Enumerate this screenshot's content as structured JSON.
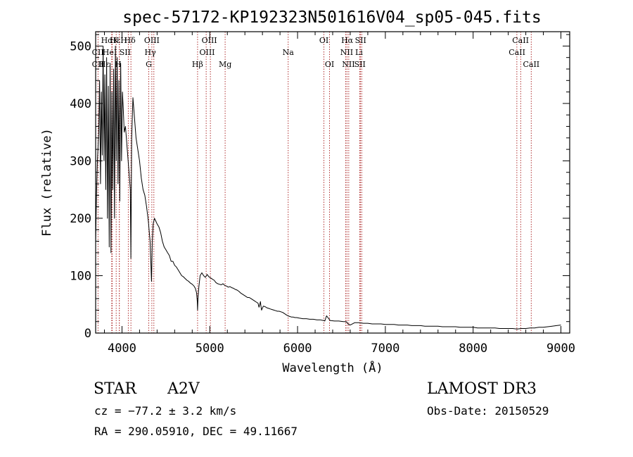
{
  "chart_data": {
    "type": "line",
    "title": "spec-57172-KP192323N501616V04_sp05-045.fits",
    "xlabel": "Wavelength (Å)",
    "ylabel": "Flux (relative)",
    "xlim": [
      3700,
      9100
    ],
    "ylim": [
      0,
      525
    ],
    "xticks": [
      4000,
      5000,
      6000,
      7000,
      8000,
      9000
    ],
    "yticks": [
      0,
      100,
      200,
      300,
      400,
      500
    ],
    "grid": false,
    "series": [
      {
        "name": "spectrum",
        "x": [
          3700,
          3710,
          3720,
          3735,
          3745,
          3755,
          3765,
          3775,
          3785,
          3795,
          3805,
          3815,
          3825,
          3835,
          3845,
          3855,
          3865,
          3875,
          3885,
          3895,
          3905,
          3915,
          3925,
          3935,
          3945,
          3955,
          3965,
          3975,
          3985,
          3995,
          4005,
          4015,
          4025,
          4040,
          4055,
          4070,
          4085,
          4095,
          4101,
          4110,
          4125,
          4140,
          4160,
          4180,
          4200,
          4220,
          4240,
          4260,
          4280,
          4300,
          4320,
          4330,
          4336,
          4340,
          4345,
          4355,
          4370,
          4385,
          4400,
          4420,
          4440,
          4460,
          4480,
          4500,
          4520,
          4540,
          4560,
          4580,
          4600,
          4620,
          4640,
          4660,
          4680,
          4700,
          4720,
          4740,
          4760,
          4780,
          4800,
          4820,
          4835,
          4850,
          4858,
          4861,
          4866,
          4875,
          4890,
          4910,
          4930,
          4950,
          4970,
          4990,
          5010,
          5030,
          5050,
          5070,
          5090,
          5110,
          5130,
          5150,
          5170,
          5190,
          5210,
          5230,
          5250,
          5270,
          5290,
          5310,
          5330,
          5350,
          5370,
          5390,
          5410,
          5430,
          5450,
          5470,
          5490,
          5510,
          5530,
          5550,
          5560,
          5570,
          5577,
          5582,
          5590,
          5610,
          5630,
          5650,
          5670,
          5690,
          5710,
          5730,
          5750,
          5770,
          5790,
          5810,
          5830,
          5850,
          5870,
          5890,
          5910,
          5930,
          5950,
          5970,
          5990,
          6020,
          6060,
          6100,
          6140,
          6180,
          6220,
          6260,
          6290,
          6300,
          6310,
          6330,
          6370,
          6420,
          6470,
          6520,
          6550,
          6562,
          6575,
          6600,
          6650,
          6700,
          6750,
          6800,
          6850,
          6900,
          6950,
          7000,
          7050,
          7100,
          7150,
          7200,
          7250,
          7300,
          7350,
          7400,
          7450,
          7500,
          7550,
          7600,
          7650,
          7700,
          7750,
          7800,
          7850,
          7900,
          7950,
          8000,
          8050,
          8100,
          8150,
          8200,
          8250,
          8300,
          8350,
          8400,
          8450,
          8500,
          8550,
          8600,
          8650,
          8700,
          8750,
          8800,
          8850,
          8900,
          8950,
          9000
        ],
        "values": [
          160,
          240,
          300,
          350,
          440,
          260,
          420,
          310,
          500,
          300,
          450,
          250,
          480,
          200,
          430,
          150,
          470,
          140,
          420,
          250,
          460,
          200,
          500,
          300,
          480,
          260,
          440,
          230,
          470,
          300,
          420,
          390,
          350,
          360,
          330,
          300,
          270,
          250,
          130,
          340,
          410,
          380,
          340,
          320,
          300,
          270,
          250,
          240,
          220,
          195,
          160,
          120,
          90,
          120,
          160,
          190,
          200,
          195,
          190,
          185,
          175,
          160,
          150,
          145,
          140,
          135,
          125,
          125,
          118,
          115,
          110,
          105,
          100,
          98,
          95,
          92,
          90,
          87,
          85,
          82,
          78,
          70,
          55,
          40,
          60,
          80,
          100,
          105,
          100,
          97,
          102,
          98,
          96,
          94,
          92,
          88,
          86,
          85,
          84,
          86,
          83,
          82,
          80,
          81,
          79,
          78,
          76,
          75,
          73,
          70,
          68,
          66,
          64,
          62,
          62,
          60,
          58,
          56,
          54,
          52,
          45,
          50,
          55,
          48,
          40,
          47,
          46,
          44,
          43,
          42,
          41,
          40,
          39,
          38,
          38,
          37,
          36,
          34,
          32,
          30,
          29,
          28,
          28,
          27,
          27,
          26,
          25,
          25,
          24,
          24,
          23,
          23,
          22,
          22,
          21,
          30,
          22,
          21,
          21,
          20,
          20,
          19,
          16,
          14,
          18,
          18,
          17,
          17,
          16,
          16,
          16,
          15,
          15,
          15,
          14,
          14,
          14,
          13,
          13,
          13,
          12,
          12,
          12,
          12,
          11,
          11,
          11,
          11,
          10,
          10,
          10,
          10,
          9,
          9,
          9,
          9,
          9,
          8,
          8,
          8,
          8,
          7,
          8,
          8,
          9,
          9,
          10,
          10,
          11,
          12,
          13,
          14
        ]
      }
    ],
    "lines": [
      {
        "name": "CaII K",
        "x": 3934
      },
      {
        "name": "CaII H",
        "x": 3969
      },
      {
        "name": "H-epsilon",
        "x": 3970
      },
      {
        "name": "CN",
        "x": 3883
      },
      {
        "name": "OII",
        "x": 3727
      },
      {
        "name": "HeI",
        "x": 3889
      },
      {
        "name": "SII",
        "x": 4072
      },
      {
        "name": "H-delta",
        "x": 4102
      },
      {
        "name": "OIII 4363",
        "x": 4363
      },
      {
        "name": "H-gamma",
        "x": 4340
      },
      {
        "name": "G band",
        "x": 4305
      },
      {
        "name": "H-beta",
        "x": 4861
      },
      {
        "name": "OIII 4959",
        "x": 4959
      },
      {
        "name": "OIII 5007",
        "x": 5007
      },
      {
        "name": "Mg",
        "x": 5175
      },
      {
        "name": "Na",
        "x": 5893
      },
      {
        "name": "OI 6300",
        "x": 6300
      },
      {
        "name": "OI 6364",
        "x": 6364
      },
      {
        "name": "NII 6548",
        "x": 6548
      },
      {
        "name": "H-alpha",
        "x": 6563
      },
      {
        "name": "NII 6583",
        "x": 6583
      },
      {
        "name": "Li",
        "x": 6708
      },
      {
        "name": "SII 6716",
        "x": 6716
      },
      {
        "name": "SII 6731",
        "x": 6731
      },
      {
        "name": "CaII 8498",
        "x": 8498
      },
      {
        "name": "CaII 8542",
        "x": 8542
      },
      {
        "name": "CaII 8662",
        "x": 8662
      }
    ],
    "line_labels": [
      {
        "text": "HαK",
        "x": 3862,
        "row": 0
      },
      {
        "text": "HεH",
        "x": 3960,
        "row": 0
      },
      {
        "text": "Hδ",
        "x": 4090,
        "row": 0
      },
      {
        "text": "OIII",
        "x": 4340,
        "row": 0
      },
      {
        "text": "OIII",
        "x": 4995,
        "row": 0
      },
      {
        "text": "OI",
        "x": 6300,
        "row": 0
      },
      {
        "text": "Hα",
        "x": 6565,
        "row": 0
      },
      {
        "text": "SII",
        "x": 6718,
        "row": 0
      },
      {
        "text": "CaII",
        "x": 8540,
        "row": 0
      },
      {
        "text": "CII",
        "x": 3725,
        "row": 1
      },
      {
        "text": "HeI",
        "x": 3860,
        "row": 1
      },
      {
        "text": "SII",
        "x": 4035,
        "row": 1
      },
      {
        "text": "Hγ",
        "x": 4322,
        "row": 1
      },
      {
        "text": "OIII",
        "x": 4970,
        "row": 1
      },
      {
        "text": "Na",
        "x": 5893,
        "row": 1
      },
      {
        "text": "NII",
        "x": 6560,
        "row": 1
      },
      {
        "text": "Li",
        "x": 6700,
        "row": 1
      },
      {
        "text": "CaII",
        "x": 8500,
        "row": 1
      },
      {
        "text": "CII",
        "x": 3725,
        "row": 2
      },
      {
        "text": "Hε",
        "x": 3800,
        "row": 2
      },
      {
        "text": "H",
        "x": 3955,
        "row": 2
      },
      {
        "text": "G",
        "x": 4305,
        "row": 2
      },
      {
        "text": "Hβ",
        "x": 4861,
        "row": 2
      },
      {
        "text": "Mg",
        "x": 5175,
        "row": 2
      },
      {
        "text": "OI",
        "x": 6364,
        "row": 2
      },
      {
        "text": "NII",
        "x": 6580,
        "row": 2
      },
      {
        "text": "SII",
        "x": 6710,
        "row": 2
      },
      {
        "text": "CaII",
        "x": 8662,
        "row": 2
      }
    ],
    "colors": {
      "spectrum": "#000000",
      "lines": "#b03030",
      "axes": "#000000"
    }
  },
  "info": {
    "object_class": "STAR",
    "subclass": "A2V",
    "survey": "LAMOST DR3",
    "cz": "cz = −77.2 ± 3.2 km/s",
    "obs_date": "Obs-Date: 20150529",
    "coords": "RA = 290.05910, DEC =  49.11667"
  }
}
